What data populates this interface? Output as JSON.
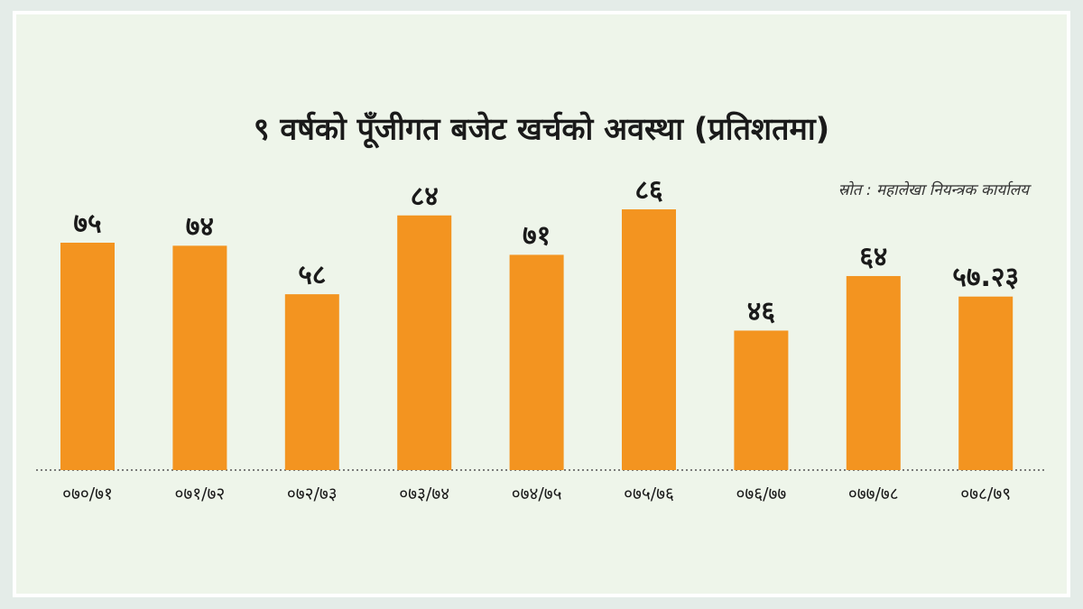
{
  "chart_data": {
    "type": "bar",
    "title": "९ वर्षको पूँजीगत बजेट खर्चको अवस्था (प्रतिशतमा)",
    "source": "स्रोत : महालेखा नियन्त्रक कार्यालय",
    "categories": [
      "०७०/७१",
      "०७१/७२",
      "०७२/७३",
      "०७३/७४",
      "०७४/७५",
      "०७५/७६",
      "०७६/७७",
      "०७७/७८",
      "०७८/७९"
    ],
    "values": [
      75,
      74,
      58,
      84,
      71,
      86,
      46,
      64,
      57.23
    ],
    "value_labels": [
      "७५",
      "७४",
      "५८",
      "८४",
      "७१",
      "८६",
      "४६",
      "६४",
      "५७.२३"
    ],
    "color": "#f39420"
  }
}
